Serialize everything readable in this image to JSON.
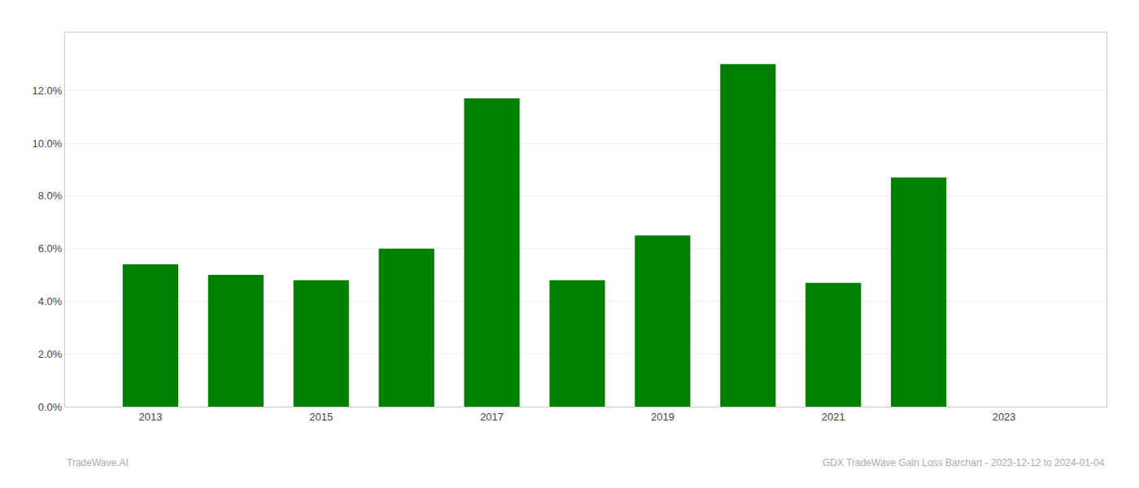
{
  "chart_data": {
    "type": "bar",
    "x": [
      2013,
      2014,
      2015,
      2016,
      2017,
      2018,
      2019,
      2020,
      2021,
      2022
    ],
    "values": [
      0.054,
      0.05,
      0.048,
      0.06,
      0.117,
      0.048,
      0.065,
      0.13,
      0.047,
      0.087
    ],
    "color": "#008000",
    "xlim": [
      2012.0,
      2024.2
    ],
    "xticks": [
      2013,
      2015,
      2017,
      2019,
      2021,
      2023
    ],
    "ylim": [
      0,
      0.142
    ],
    "yticks": [
      {
        "value": 0.0,
        "label": "0.0%"
      },
      {
        "value": 0.02,
        "label": "2.0%"
      },
      {
        "value": 0.04,
        "label": "4.0%"
      },
      {
        "value": 0.06,
        "label": "6.0%"
      },
      {
        "value": 0.08,
        "label": "8.0%"
      },
      {
        "value": 0.1,
        "label": "10.0%"
      },
      {
        "value": 0.12,
        "label": "12.0%"
      }
    ],
    "grid": true,
    "annotations": [
      "TradeWave.AI",
      "GDX TradeWave Gain Loss Barchart - 2023-12-12 to 2024-01-04"
    ]
  }
}
